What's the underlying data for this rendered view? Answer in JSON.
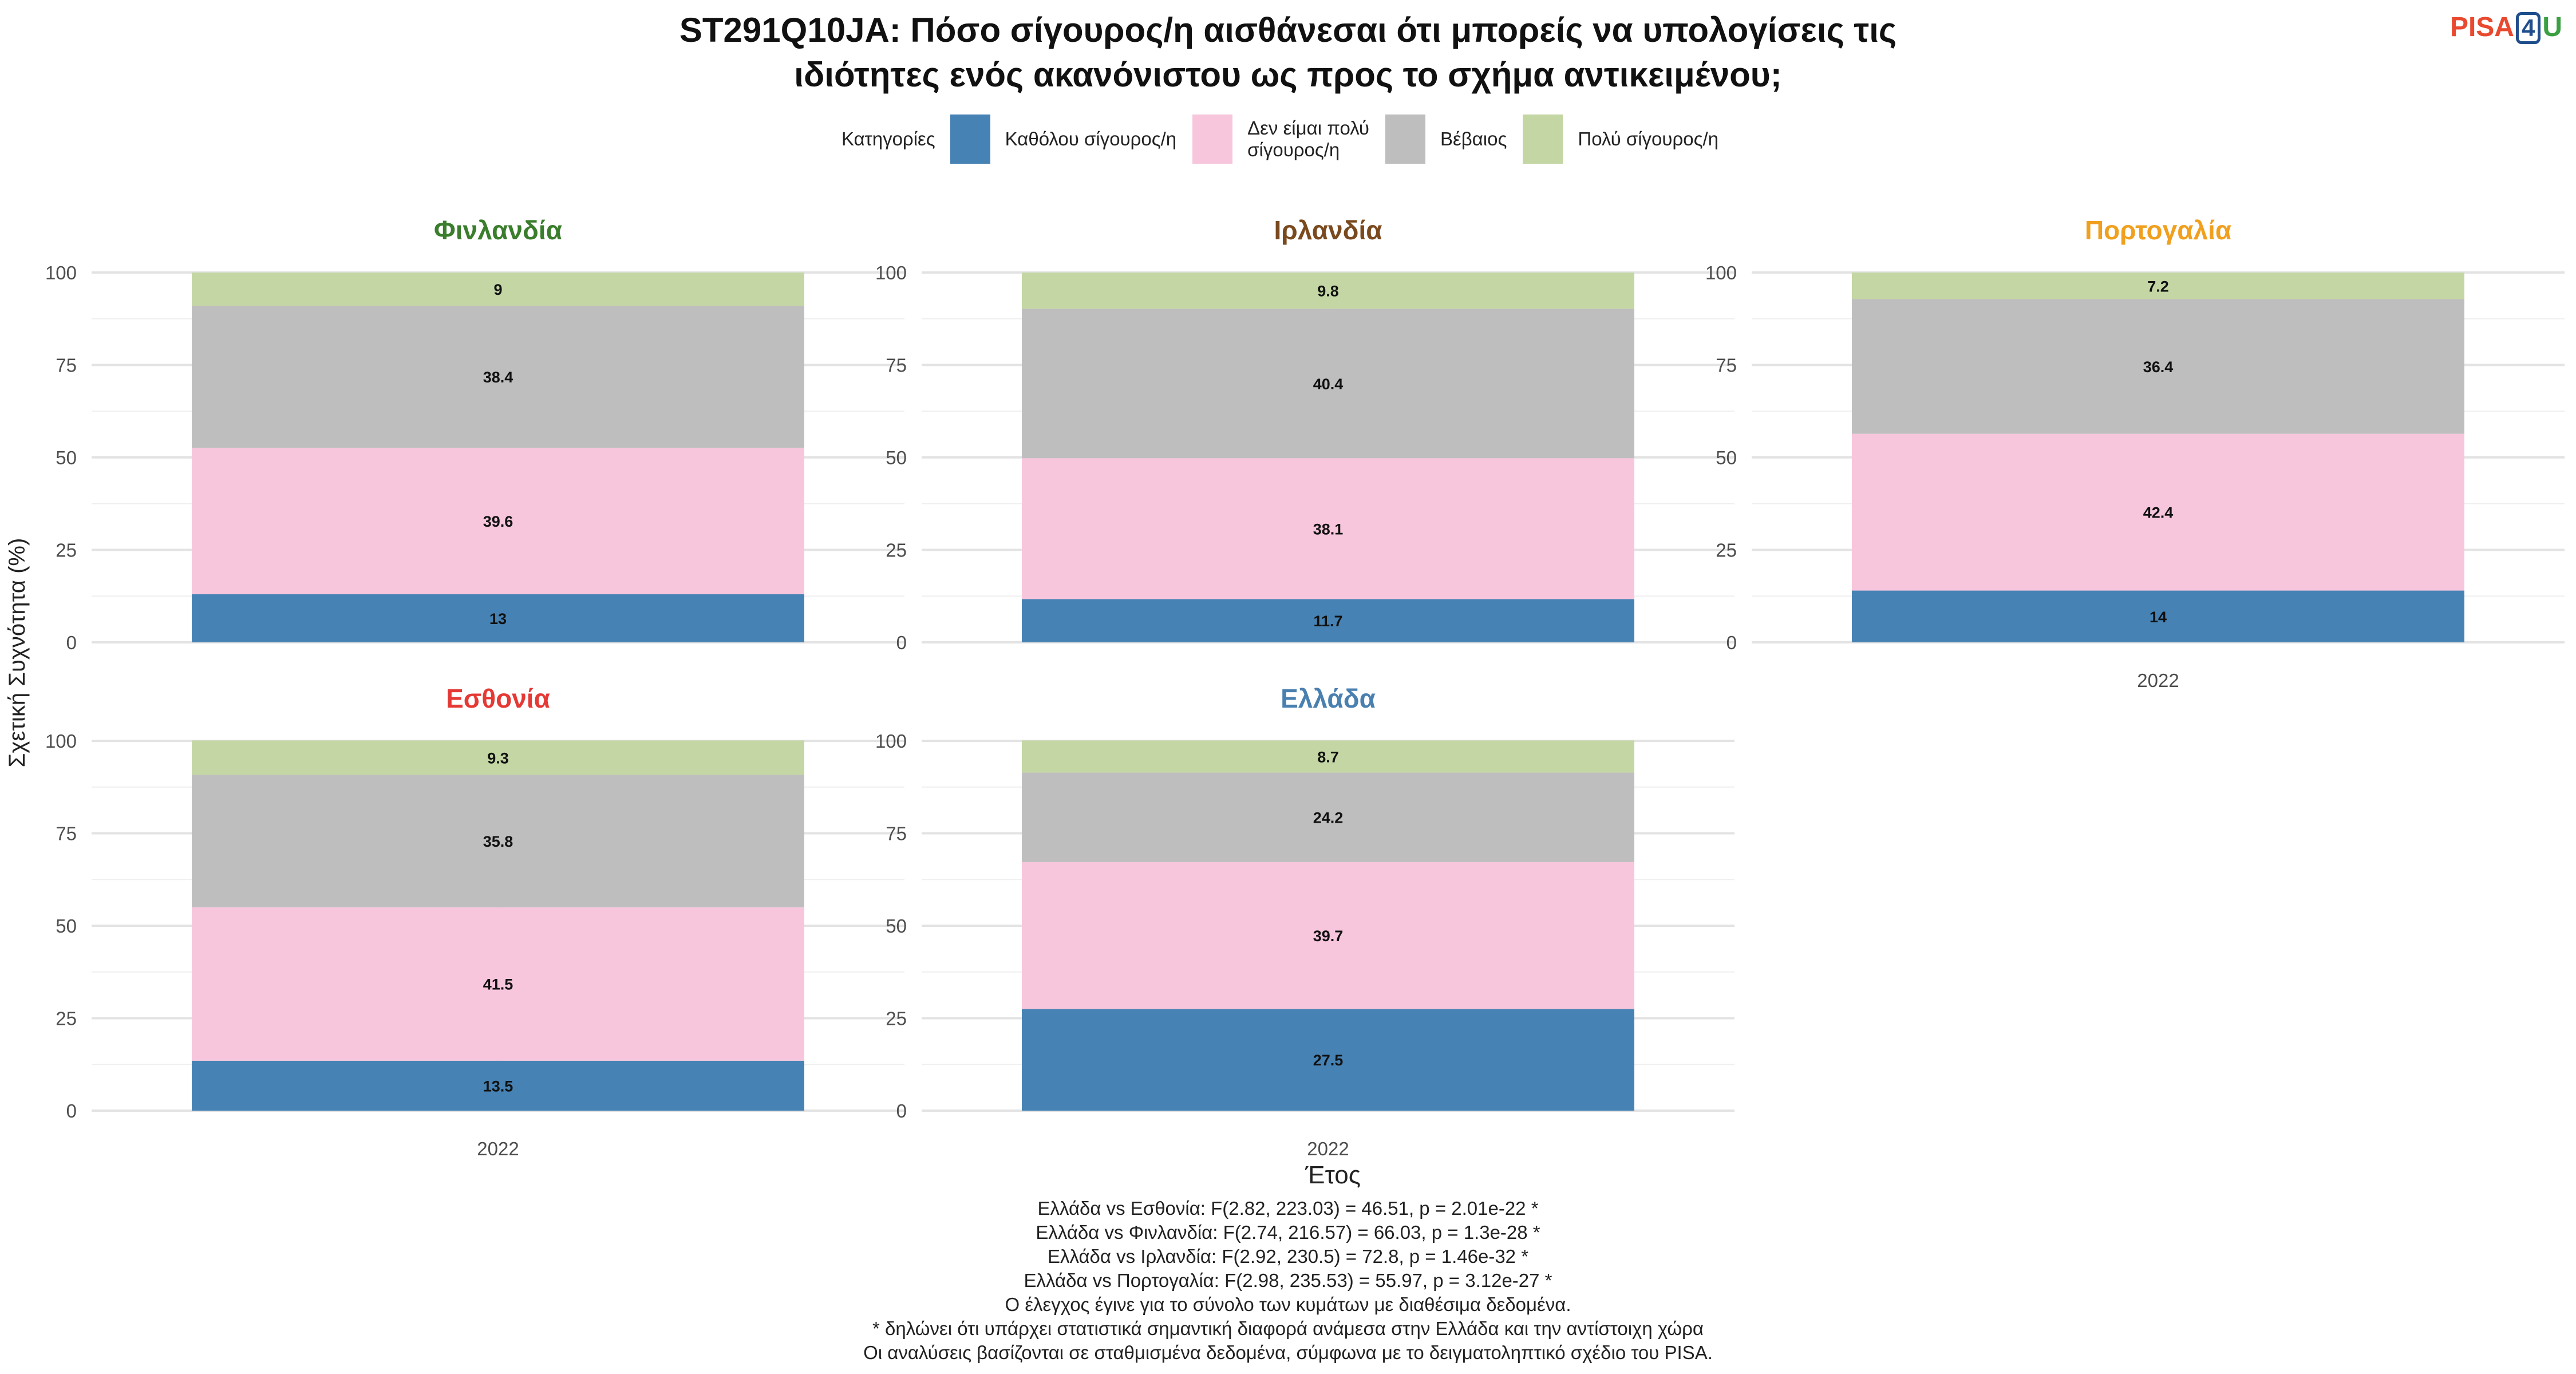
{
  "title_line1": "ST291Q10JA: Πόσο σίγουρος/η αισθάνεσαι ότι μπορείς να υπολογίσεις τις",
  "title_line2": "ιδιότητες ενός ακανόνιστου ως προς το σχήμα αντικειμένου;",
  "logo": {
    "pisa": "PISA",
    "four": "4",
    "u": "U"
  },
  "legend": {
    "title": "Κατηγορίες",
    "items": [
      {
        "label": "Καθόλου σίγουρος/η",
        "color": "#4682b4"
      },
      {
        "label_line1": "Δεν είμαι πολύ",
        "label_line2": "σίγουρος/η",
        "color": "#f7c6dc"
      },
      {
        "label": "Βέβαιος",
        "color": "#bebebe"
      },
      {
        "label": "Πολύ σίγουρος/η",
        "color": "#c3d6a4"
      }
    ]
  },
  "ylabel": "Σχετική Συχνότητα (%)",
  "xlabel": "Έτος",
  "chart_data": {
    "type": "bar",
    "stacked": true,
    "ylim": [
      0,
      100
    ],
    "yticks": [
      "0",
      "25",
      "50",
      "75",
      "100"
    ],
    "categories": [
      "2022"
    ],
    "series_order": [
      "Καθόλου σίγουρος/η",
      "Δεν είμαι πολύ σίγουρος/η",
      "Βέβαιος",
      "Πολύ σίγουρος/η"
    ],
    "colors": [
      "#4682b4",
      "#f7c6dc",
      "#bebebe",
      "#c3d6a4"
    ],
    "panels": [
      {
        "title": "Φινλανδία",
        "title_color": "#3a7d2c",
        "values": [
          13,
          39.6,
          38.4,
          9
        ],
        "labels": [
          "13",
          "39.6",
          "38.4",
          "9"
        ]
      },
      {
        "title": "Ιρλανδία",
        "title_color": "#7a4a1e",
        "values": [
          11.7,
          38.1,
          40.4,
          9.8
        ],
        "labels": [
          "11.7",
          "38.1",
          "40.4",
          "9.8"
        ]
      },
      {
        "title": "Πορτογαλία",
        "title_color": "#f0a01e",
        "values": [
          14,
          42.4,
          36.4,
          7.2
        ],
        "labels": [
          "14",
          "42.4",
          "36.4",
          "7.2"
        ]
      },
      {
        "title": "Εσθονία",
        "title_color": "#e53935",
        "values": [
          13.5,
          41.5,
          35.8,
          9.3
        ],
        "labels": [
          "13.5",
          "41.5",
          "35.8",
          "9.3"
        ]
      },
      {
        "title": "Ελλάδα",
        "title_color": "#4a80b0",
        "values": [
          27.5,
          39.7,
          24.2,
          8.7
        ],
        "labels": [
          "27.5",
          "39.7",
          "24.2",
          "8.7"
        ]
      }
    ]
  },
  "notes": [
    "Ελλάδα vs Εσθονία: F(2.82, 223.03) = 46.51, p = 2.01e-22 *",
    "Ελλάδα vs Φινλανδία: F(2.74, 216.57) = 66.03, p = 1.3e-28 *",
    "Ελλάδα vs Ιρλανδία: F(2.92, 230.5) = 72.8, p = 1.46e-32 *",
    "Ελλάδα vs Πορτογαλία: F(2.98, 235.53) = 55.97, p = 3.12e-27 *",
    "Ο έλεγχος έγινε για το σύνολο των κυμάτων με διαθέσιμα δεδομένα.",
    "* δηλώνει ότι υπάρχει στατιστικά σημαντική διαφορά ανάμεσα στην Ελλάδα και την αντίστοιχη χώρα",
    "Οι αναλύσεις βασίζονται σε σταθμισμένα δεδομένα, σύμφωνα με το δειγματοληπτικό σχέδιο του PISA."
  ]
}
